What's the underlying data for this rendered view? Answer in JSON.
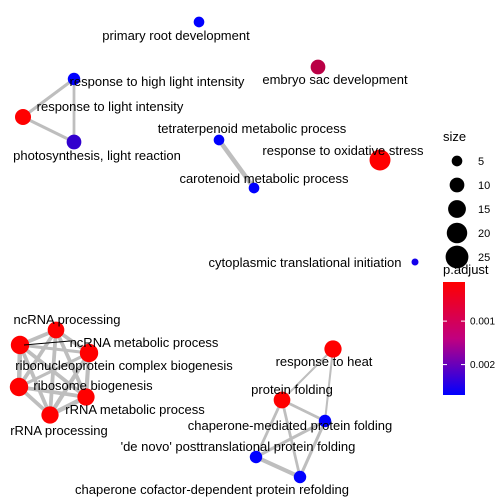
{
  "chart_data": {
    "type": "network",
    "title": "",
    "nodes": [
      {
        "id": "primary-root-development",
        "label": "primary root development",
        "size": 5,
        "p_adjust": 0.0027
      },
      {
        "id": "embryo-sac-development",
        "label": "embryo sac development",
        "size": 10,
        "p_adjust": 0.0008
      },
      {
        "id": "response-to-high-light-intensity",
        "label": "response to high light intensity",
        "size": 7,
        "p_adjust": 0.0027
      },
      {
        "id": "response-to-light-intensity",
        "label": "response to light intensity",
        "size": 12,
        "p_adjust": 0.0001
      },
      {
        "id": "photosynthesis-light-reaction",
        "label": "photosynthesis, light reaction",
        "size": 10,
        "p_adjust": 0.0022
      },
      {
        "id": "tetraterpenoid-metabolic-process",
        "label": "tetraterpenoid metabolic process",
        "size": 5,
        "p_adjust": 0.0027
      },
      {
        "id": "carotenoid-metabolic-process",
        "label": "carotenoid metabolic process",
        "size": 5,
        "p_adjust": 0.0027
      },
      {
        "id": "response-to-oxidative-stress",
        "label": "response to oxidative stress",
        "size": 21,
        "p_adjust": 0.0001
      },
      {
        "id": "cytoplasmic-translational-initiation",
        "label": "cytoplasmic translational initiation",
        "size": 2,
        "p_adjust": 0.0025
      },
      {
        "id": "ncrna-processing",
        "label": "ncRNA processing",
        "size": 13,
        "p_adjust": 0.0001
      },
      {
        "id": "ncrna-metabolic-process",
        "label": "ncRNA metabolic process",
        "size": 16,
        "p_adjust": 0.0001
      },
      {
        "id": "ribonucleoprotein-complex-biogenesis",
        "label": "ribonucleoprotein complex biogenesis",
        "size": 16,
        "p_adjust": 0.0001
      },
      {
        "id": "ribosome-biogenesis",
        "label": "ribosome biogenesis",
        "size": 16,
        "p_adjust": 0.0001
      },
      {
        "id": "rrna-metabolic-process",
        "label": "rRNA metabolic process",
        "size": 14,
        "p_adjust": 0.0001
      },
      {
        "id": "rrna-processing",
        "label": "rRNA processing",
        "size": 14,
        "p_adjust": 0.0001
      },
      {
        "id": "response-to-heat",
        "label": "response to heat",
        "size": 14,
        "p_adjust": 0.0001
      },
      {
        "id": "protein-folding",
        "label": "protein folding",
        "size": 13,
        "p_adjust": 0.0001
      },
      {
        "id": "chaperone-mediated-protein-folding",
        "label": "chaperone-mediated protein folding",
        "size": 7,
        "p_adjust": 0.0027
      },
      {
        "id": "de-novo-posttranslational-protein-folding",
        "label": "'de novo' posttranslational protein folding",
        "size": 7,
        "p_adjust": 0.0027
      },
      {
        "id": "chaperone-cofactor-dependent-protein-refolding",
        "label": "chaperone cofactor-dependent protein refolding",
        "size": 7,
        "p_adjust": 0.0027
      }
    ],
    "edges": [
      {
        "source": "response-to-high-light-intensity",
        "target": "response-to-light-intensity",
        "weight": 0.6
      },
      {
        "source": "response-to-high-light-intensity",
        "target": "photosynthesis-light-reaction",
        "weight": 0.5
      },
      {
        "source": "response-to-light-intensity",
        "target": "photosynthesis-light-reaction",
        "weight": 0.6
      },
      {
        "source": "tetraterpenoid-metabolic-process",
        "target": "carotenoid-metabolic-process",
        "weight": 1.0
      },
      {
        "source": "ncrna-processing",
        "target": "ncrna-metabolic-process",
        "weight": 0.8
      },
      {
        "source": "ncrna-processing",
        "target": "ribonucleoprotein-complex-biogenesis",
        "weight": 0.8
      },
      {
        "source": "ncrna-processing",
        "target": "ribosome-biogenesis",
        "weight": 0.8
      },
      {
        "source": "ncrna-processing",
        "target": "rrna-metabolic-process",
        "weight": 0.8
      },
      {
        "source": "ncrna-processing",
        "target": "rrna-processing",
        "weight": 0.8
      },
      {
        "source": "ncrna-metabolic-process",
        "target": "ribonucleoprotein-complex-biogenesis",
        "weight": 0.6
      },
      {
        "source": "ncrna-metabolic-process",
        "target": "ribosome-biogenesis",
        "weight": 0.6
      },
      {
        "source": "ncrna-metabolic-process",
        "target": "rrna-metabolic-process",
        "weight": 0.9
      },
      {
        "source": "ncrna-metabolic-process",
        "target": "rrna-processing",
        "weight": 0.9
      },
      {
        "source": "ribonucleoprotein-complex-biogenesis",
        "target": "ribosome-biogenesis",
        "weight": 1.0
      },
      {
        "source": "ribonucleoprotein-complex-biogenesis",
        "target": "rrna-metabolic-process",
        "weight": 0.8
      },
      {
        "source": "ribonucleoprotein-complex-biogenesis",
        "target": "rrna-processing",
        "weight": 0.8
      },
      {
        "source": "ribosome-biogenesis",
        "target": "rrna-metabolic-process",
        "weight": 0.8
      },
      {
        "source": "ribosome-biogenesis",
        "target": "rrna-processing",
        "weight": 0.8
      },
      {
        "source": "rrna-metabolic-process",
        "target": "rrna-processing",
        "weight": 1.0
      },
      {
        "source": "response-to-heat",
        "target": "protein-folding",
        "weight": 0.3
      },
      {
        "source": "response-to-heat",
        "target": "chaperone-mediated-protein-folding",
        "weight": 0.3
      },
      {
        "source": "protein-folding",
        "target": "chaperone-mediated-protein-folding",
        "weight": 0.5
      },
      {
        "source": "protein-folding",
        "target": "de-novo-posttranslational-protein-folding",
        "weight": 0.5
      },
      {
        "source": "protein-folding",
        "target": "chaperone-cofactor-dependent-protein-refolding",
        "weight": 0.5
      },
      {
        "source": "chaperone-mediated-protein-folding",
        "target": "de-novo-posttranslational-protein-folding",
        "weight": 0.6
      },
      {
        "source": "chaperone-mediated-protein-folding",
        "target": "chaperone-cofactor-dependent-protein-refolding",
        "weight": 0.6
      },
      {
        "source": "de-novo-posttranslational-protein-folding",
        "target": "chaperone-cofactor-dependent-protein-refolding",
        "weight": 0.9
      }
    ],
    "legend": {
      "position": "right",
      "size": {
        "title": "size",
        "breaks": [
          5,
          10,
          15,
          20,
          25
        ]
      },
      "color": {
        "title": "p.adjust",
        "ticks": [
          0.001,
          0.002
        ],
        "range": [
          0.0001,
          0.0027
        ],
        "low_color": "#FF0000",
        "high_color": "#0000FF"
      }
    }
  }
}
